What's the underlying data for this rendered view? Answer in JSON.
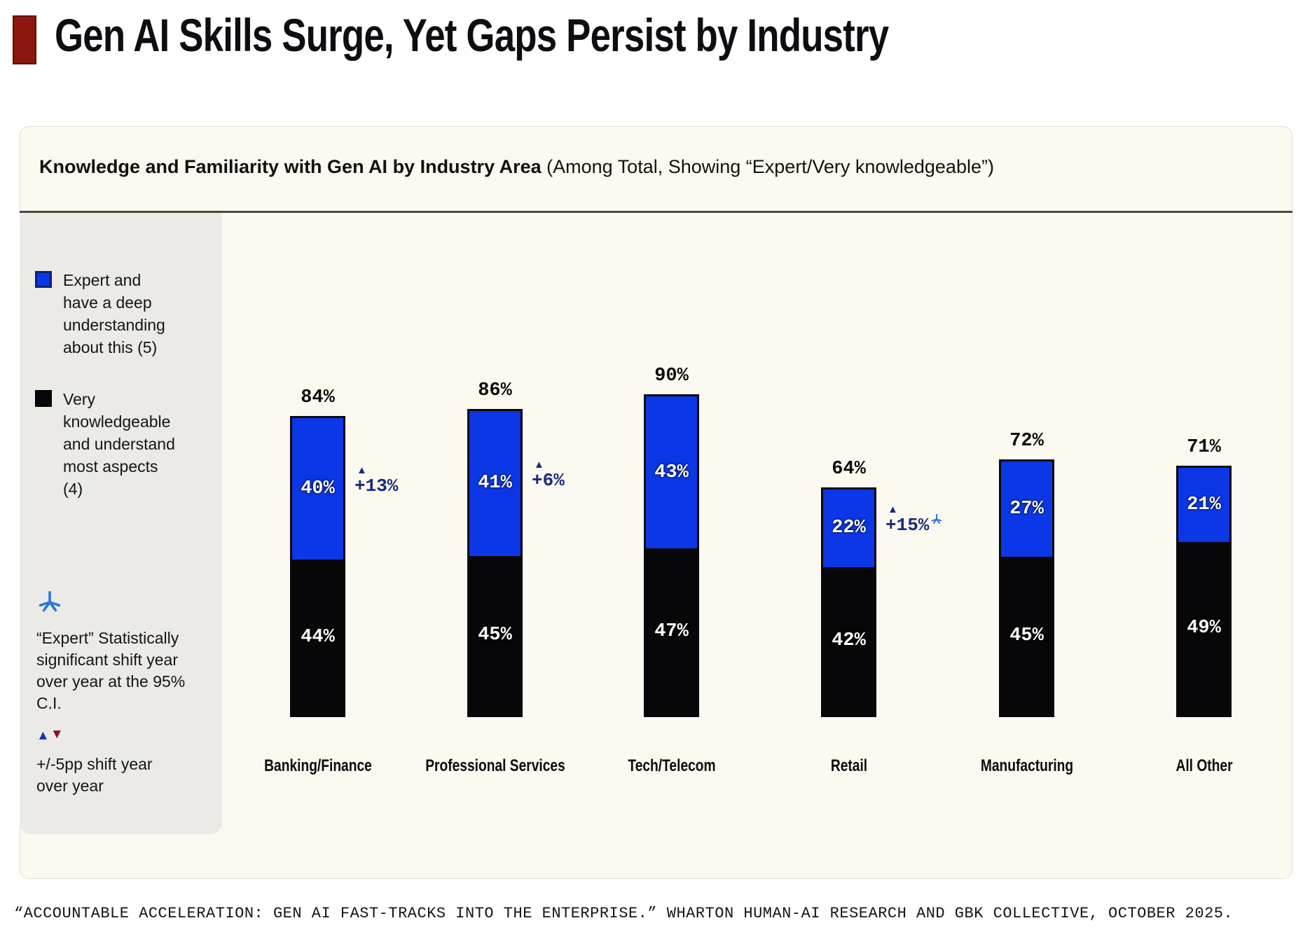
{
  "page": {
    "title": "Gen AI Skills Surge, Yet Gaps Persist by Industry",
    "footer": "“ACCOUNTABLE ACCELERATION: GEN AI FAST-TRACKS INTO THE ENTERPRISE.” WHARTON HUMAN-AI RESEARCH AND GBK COLLECTIVE, OCTOBER 2025.",
    "accent_colors": {
      "title_marker_red": "#8c170e",
      "expert_blue": "#0c37e6",
      "very_black": "#070709",
      "annotation_navy": "#1a2a7d",
      "significance_star_blue": "#2f78d8",
      "down_triangle_red": "#8e0f26"
    }
  },
  "subtitle": {
    "bold": "Knowledge and Familiarity with Gen AI by Industry Area",
    "regular": " (Among Total, Showing “Expert/Very knowledgeable”)"
  },
  "legend": {
    "items": [
      {
        "label": "Expert and have a deep understanding about this (5)",
        "color": "#0c37e6"
      },
      {
        "label": "Very knowledgeable and understand most aspects (4)",
        "color": "#070709"
      }
    ],
    "star_note": "“Expert” Statistically significant shift year over year at the 95% C.I.",
    "up_triangle": "▲",
    "down_triangle": "▼",
    "shift_note": "+/-5pp shift year over year"
  },
  "chart_data": {
    "type": "bar",
    "stacked": true,
    "grid": false,
    "legend_position": "left",
    "ylim": [
      0,
      100
    ],
    "categories": [
      "Banking/Finance",
      "Professional Services",
      "Tech/Telecom",
      "Retail",
      "Manufacturing",
      "All Other"
    ],
    "series": [
      {
        "name": "Expert and have a deep understanding about this (5)",
        "color": "#0c37e6",
        "values": [
          40,
          41,
          43,
          22,
          27,
          21
        ]
      },
      {
        "name": "Very knowledgeable and understand most aspects (4)",
        "color": "#070709",
        "values": [
          44,
          45,
          47,
          42,
          45,
          49
        ]
      }
    ],
    "totals": [
      "84%",
      "86%",
      "90%",
      "64%",
      "72%",
      "71%"
    ],
    "annotations": [
      {
        "index": 0,
        "category": "Banking/Finance",
        "text": "+13%",
        "significant": false
      },
      {
        "index": 1,
        "category": "Professional Services",
        "text": "+6%",
        "significant": false
      },
      {
        "index": 3,
        "category": "Retail",
        "text": "+15%",
        "significant": true
      }
    ]
  }
}
